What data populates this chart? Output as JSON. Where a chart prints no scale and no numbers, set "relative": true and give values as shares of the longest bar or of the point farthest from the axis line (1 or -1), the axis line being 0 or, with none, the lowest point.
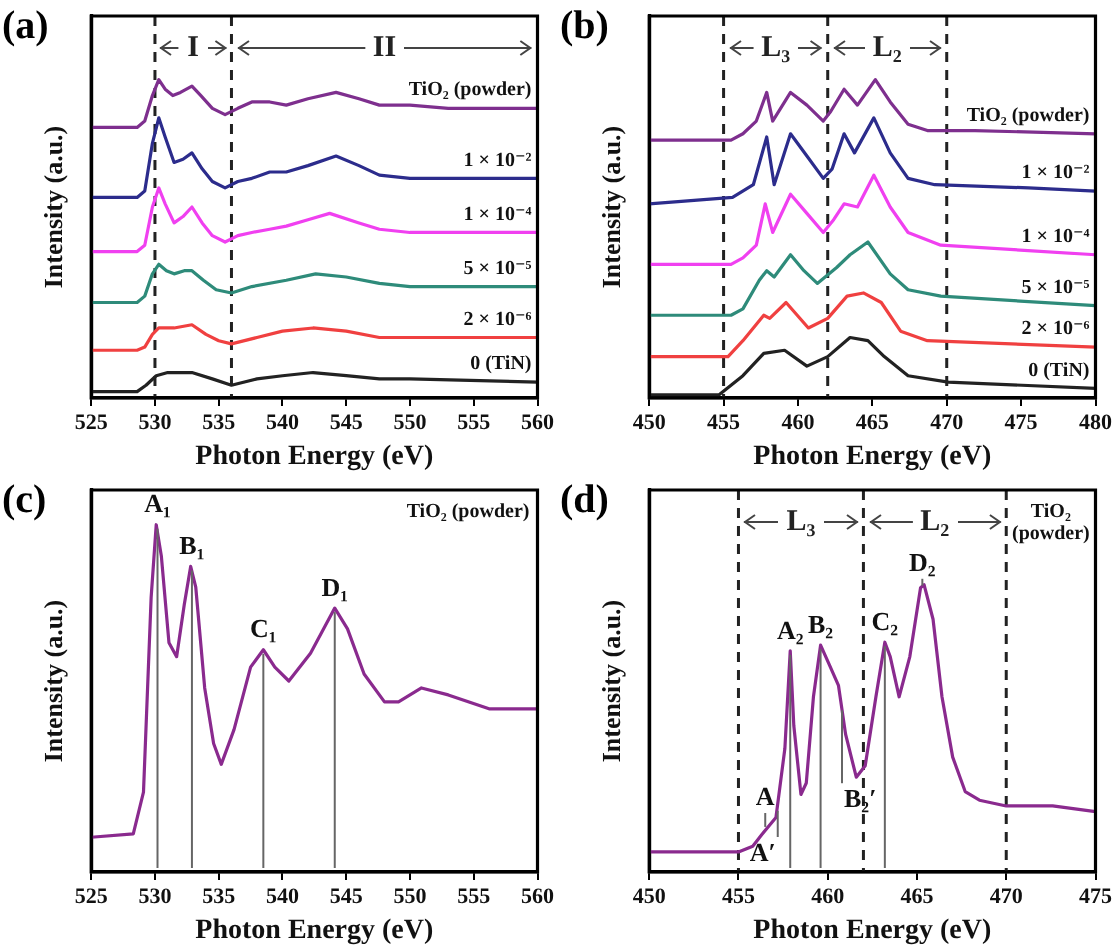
{
  "chart_data": [
    {
      "type": "line",
      "title": "(a)",
      "xlabel": "Photon Energy (eV)",
      "ylabel": "Intensity (a.u.)",
      "relative": true,
      "xlim": [
        525,
        560
      ],
      "xticks": [
        525,
        530,
        535,
        540,
        545,
        550,
        555,
        560
      ],
      "legend": false,
      "ref_lines": [
        {
          "axis": "x",
          "value": 530,
          "color": "#222222",
          "line_style": "dashed"
        },
        {
          "axis": "x",
          "value": 536,
          "color": "#222222",
          "line_style": "dashed"
        }
      ],
      "annotations": [
        "I",
        "II"
      ],
      "series": [
        {
          "name": "TiO₂ (powder)",
          "color": "#7e2f8e",
          "x": [
            525,
            528.6,
            529.2,
            529.8,
            530.3,
            530.8,
            531.4,
            532,
            532.9,
            533.6,
            534.5,
            535.5,
            536.5,
            537.6,
            539,
            540.3,
            542,
            544.2,
            546,
            547.6,
            550,
            553,
            560
          ],
          "values": [
            0.85,
            0.85,
            0.87,
            0.95,
            1.0,
            0.97,
            0.95,
            0.96,
            0.98,
            0.95,
            0.91,
            0.89,
            0.91,
            0.93,
            0.93,
            0.92,
            0.94,
            0.96,
            0.94,
            0.92,
            0.92,
            0.91,
            0.91
          ]
        },
        {
          "name": "1 × 10⁻²",
          "color": "#2c2c8c",
          "x": [
            525,
            528.6,
            529.2,
            529.8,
            530.3,
            530.8,
            531.5,
            532.2,
            532.9,
            533.7,
            534.5,
            535.5,
            536.5,
            537.6,
            539,
            540.3,
            542,
            544.2,
            546,
            547.6,
            550,
            553,
            560
          ],
          "values": [
            0.63,
            0.63,
            0.65,
            0.8,
            0.88,
            0.82,
            0.74,
            0.75,
            0.77,
            0.72,
            0.68,
            0.66,
            0.68,
            0.69,
            0.71,
            0.71,
            0.73,
            0.76,
            0.73,
            0.7,
            0.69,
            0.69,
            0.69
          ]
        },
        {
          "name": "1 × 10⁻⁴",
          "color": "#f040f0",
          "x": [
            525,
            528.6,
            529.2,
            529.8,
            530.3,
            530.8,
            531.5,
            532.2,
            532.9,
            533.7,
            534.5,
            535.5,
            536.5,
            537.6,
            539,
            540.3,
            542,
            543.7,
            546,
            547.6,
            550,
            553,
            560
          ],
          "values": [
            0.46,
            0.46,
            0.48,
            0.6,
            0.66,
            0.61,
            0.55,
            0.57,
            0.6,
            0.55,
            0.51,
            0.49,
            0.51,
            0.52,
            0.53,
            0.54,
            0.56,
            0.58,
            0.55,
            0.53,
            0.52,
            0.52,
            0.52
          ]
        },
        {
          "name": "5 × 10⁻⁵",
          "color": "#2e8b7a",
          "x": [
            525,
            528.6,
            529.2,
            529.8,
            530.3,
            530.9,
            531.5,
            532.3,
            532.9,
            533.8,
            534.8,
            536,
            537.6,
            540.3,
            542.6,
            545,
            547.6,
            550,
            560
          ],
          "values": [
            0.3,
            0.3,
            0.32,
            0.39,
            0.42,
            0.4,
            0.39,
            0.4,
            0.4,
            0.37,
            0.34,
            0.33,
            0.35,
            0.37,
            0.39,
            0.38,
            0.36,
            0.35,
            0.35
          ]
        },
        {
          "name": "2 × 10⁻⁶",
          "color": "#f04040",
          "x": [
            525,
            528.6,
            529.2,
            529.8,
            530.3,
            531.5,
            532.9,
            534,
            535,
            536,
            538,
            540,
            542.4,
            545,
            547.6,
            550,
            560
          ],
          "values": [
            0.15,
            0.15,
            0.16,
            0.2,
            0.22,
            0.22,
            0.23,
            0.2,
            0.18,
            0.17,
            0.19,
            0.21,
            0.22,
            0.21,
            0.19,
            0.19,
            0.19
          ]
        },
        {
          "name": "0 (TiN)",
          "color": "#222222",
          "x": [
            525,
            528.6,
            529.3,
            530.1,
            531,
            532.9,
            534.5,
            536,
            538,
            540,
            542.4,
            545,
            547.6,
            550,
            560
          ],
          "values": [
            0.02,
            0.02,
            0.04,
            0.07,
            0.08,
            0.08,
            0.06,
            0.04,
            0.06,
            0.07,
            0.08,
            0.07,
            0.06,
            0.06,
            0.05
          ]
        }
      ]
    },
    {
      "type": "line",
      "title": "(b)",
      "xlabel": "Photon Energy (eV)",
      "ylabel": "Intensity (a.u.)",
      "relative": true,
      "xlim": [
        450,
        480
      ],
      "xticks": [
        450,
        455,
        460,
        465,
        470,
        475,
        480
      ],
      "legend": false,
      "ref_lines": [
        {
          "axis": "x",
          "value": 455,
          "color": "#222222",
          "line_style": "dashed"
        },
        {
          "axis": "x",
          "value": 462,
          "color": "#222222",
          "line_style": "dashed"
        },
        {
          "axis": "x",
          "value": 470,
          "color": "#222222",
          "line_style": "dashed"
        }
      ],
      "annotations": [
        "L₃",
        "L₂"
      ],
      "series": [
        {
          "name": "TiO₂ (powder)",
          "color": "#7e2f8e",
          "x": [
            450,
            455.5,
            456.3,
            457.2,
            457.9,
            458.3,
            459.5,
            460.6,
            461.7,
            462.2,
            463.1,
            464,
            465.2,
            466.2,
            467.4,
            468.7,
            471.9,
            480
          ],
          "values": [
            0.81,
            0.81,
            0.83,
            0.87,
            0.96,
            0.87,
            0.96,
            0.92,
            0.87,
            0.9,
            0.97,
            0.92,
            1.0,
            0.93,
            0.86,
            0.84,
            0.84,
            0.83
          ]
        },
        {
          "name": "1 × 10⁻²",
          "color": "#2c2c8c",
          "x": [
            450,
            455.6,
            457,
            457.9,
            458.4,
            459.5,
            460.6,
            461.7,
            462.3,
            463.1,
            463.8,
            465.1,
            466.2,
            467.4,
            469.2,
            475.5,
            480
          ],
          "values": [
            0.61,
            0.63,
            0.67,
            0.82,
            0.67,
            0.83,
            0.76,
            0.69,
            0.72,
            0.83,
            0.77,
            0.88,
            0.77,
            0.69,
            0.67,
            0.66,
            0.65
          ]
        },
        {
          "name": "1 × 10⁻⁴",
          "color": "#f040f0",
          "x": [
            450,
            455.5,
            456.3,
            457.2,
            457.8,
            458.3,
            459.5,
            460.6,
            461.7,
            462.4,
            463.1,
            464,
            465.1,
            466.2,
            467.4,
            469.6,
            480
          ],
          "values": [
            0.42,
            0.42,
            0.44,
            0.48,
            0.61,
            0.52,
            0.64,
            0.58,
            0.52,
            0.56,
            0.61,
            0.6,
            0.7,
            0.6,
            0.52,
            0.48,
            0.45
          ]
        },
        {
          "name": "5 × 10⁻⁵",
          "color": "#2e8b7a",
          "x": [
            450,
            455.5,
            456.3,
            457.4,
            457.9,
            458.4,
            459.5,
            460.4,
            461.3,
            462.6,
            463.5,
            464.7,
            466.2,
            467.4,
            469.6,
            480
          ],
          "values": [
            0.26,
            0.26,
            0.28,
            0.37,
            0.4,
            0.38,
            0.45,
            0.4,
            0.36,
            0.41,
            0.45,
            0.49,
            0.39,
            0.34,
            0.32,
            0.29
          ]
        },
        {
          "name": "2 × 10⁻⁶",
          "color": "#f04040",
          "x": [
            450,
            455.3,
            456.3,
            457.7,
            458.1,
            459.2,
            460.7,
            462,
            463.3,
            464.4,
            465.6,
            466.9,
            468.7,
            480
          ],
          "values": [
            0.13,
            0.13,
            0.18,
            0.26,
            0.25,
            0.3,
            0.22,
            0.25,
            0.32,
            0.33,
            0.3,
            0.21,
            0.18,
            0.16
          ]
        },
        {
          "name": "0 (TiN)",
          "color": "#222222",
          "x": [
            450,
            454.7,
            456.3,
            457.7,
            459.1,
            460.6,
            462,
            463.5,
            464.7,
            465.8,
            467.4,
            470.1,
            480
          ],
          "values": [
            0.01,
            0.01,
            0.07,
            0.14,
            0.15,
            0.1,
            0.13,
            0.19,
            0.18,
            0.13,
            0.07,
            0.05,
            0.03
          ]
        }
      ]
    },
    {
      "type": "line",
      "title": "(c)",
      "xlabel": "Photon Energy (eV)",
      "ylabel": "Intensity (a.u.)",
      "relative": true,
      "xlim": [
        525,
        560
      ],
      "xticks": [
        525,
        530,
        535,
        540,
        545,
        550,
        555,
        560
      ],
      "legend": "top right",
      "annotations": [
        {
          "text": "A₁",
          "x": 530.2,
          "y": 1.0
        },
        {
          "text": "B₁",
          "x": 532.9,
          "y": 0.88
        },
        {
          "text": "C₁",
          "x": 538.5,
          "y": 0.64
        },
        {
          "text": "D₁",
          "x": 544.1,
          "y": 0.76
        }
      ],
      "series": [
        {
          "name": "TiO₂ (powder)",
          "color": "#8a2a8e",
          "x": [
            525,
            528.3,
            529.1,
            529.7,
            530.1,
            530.5,
            531.1,
            531.7,
            532.3,
            532.8,
            533.2,
            533.9,
            534.6,
            535.2,
            536.2,
            537.5,
            538.5,
            539.4,
            540.5,
            542.2,
            544.1,
            545.1,
            546.4,
            548,
            549.1,
            550.9,
            553,
            556.2,
            560
          ],
          "values": [
            0.1,
            0.11,
            0.23,
            0.79,
            1.0,
            0.91,
            0.66,
            0.62,
            0.77,
            0.88,
            0.82,
            0.53,
            0.37,
            0.31,
            0.41,
            0.59,
            0.64,
            0.59,
            0.55,
            0.63,
            0.76,
            0.7,
            0.57,
            0.49,
            0.49,
            0.53,
            0.51,
            0.47,
            0.47
          ]
        }
      ]
    },
    {
      "type": "line",
      "title": "(d)",
      "xlabel": "Photon Energy (eV)",
      "ylabel": "Intensity (a.u.)",
      "relative": true,
      "xlim": [
        450,
        475
      ],
      "xticks": [
        450,
        455,
        460,
        465,
        470,
        475
      ],
      "legend": "top right",
      "ref_lines": [
        {
          "axis": "x",
          "value": 455,
          "color": "#222222",
          "line_style": "dashed"
        },
        {
          "axis": "x",
          "value": 462,
          "color": "#222222",
          "line_style": "dashed"
        },
        {
          "axis": "x",
          "value": 470,
          "color": "#222222",
          "line_style": "dashed"
        }
      ],
      "annotations": [
        "L₃",
        "L₂",
        {
          "text": "A",
          "x": 456.5,
          "y": 0.15
        },
        {
          "text": "A′",
          "x": 457.2,
          "y": 0.22
        },
        {
          "text": "A₂",
          "x": 457.9,
          "y": 0.77
        },
        {
          "text": "B₂",
          "x": 459.6,
          "y": 0.79
        },
        {
          "text": "B₂′",
          "x": 460.8,
          "y": 0.57
        },
        {
          "text": "C₂",
          "x": 463.2,
          "y": 0.8
        },
        {
          "text": "D₂",
          "x": 465.3,
          "y": 0.99
        }
      ],
      "series": [
        {
          "name": "TiO₂ (powder)",
          "color": "#8a2a8e",
          "x": [
            450,
            455,
            455.8,
            456.3,
            457.1,
            457.6,
            457.9,
            458.1,
            458.5,
            458.8,
            459.2,
            459.6,
            460.1,
            460.6,
            461,
            461.6,
            462.1,
            462.7,
            463.2,
            463.5,
            464,
            464.6,
            465.2,
            465.4,
            465.9,
            466.4,
            467,
            467.7,
            468.5,
            470,
            472.6,
            475
          ],
          "values": [
            0.07,
            0.07,
            0.09,
            0.13,
            0.19,
            0.43,
            0.77,
            0.51,
            0.27,
            0.31,
            0.61,
            0.79,
            0.72,
            0.65,
            0.48,
            0.33,
            0.37,
            0.61,
            0.8,
            0.75,
            0.61,
            0.75,
            0.99,
            1.0,
            0.88,
            0.61,
            0.4,
            0.28,
            0.25,
            0.23,
            0.23,
            0.21
          ]
        }
      ]
    }
  ]
}
